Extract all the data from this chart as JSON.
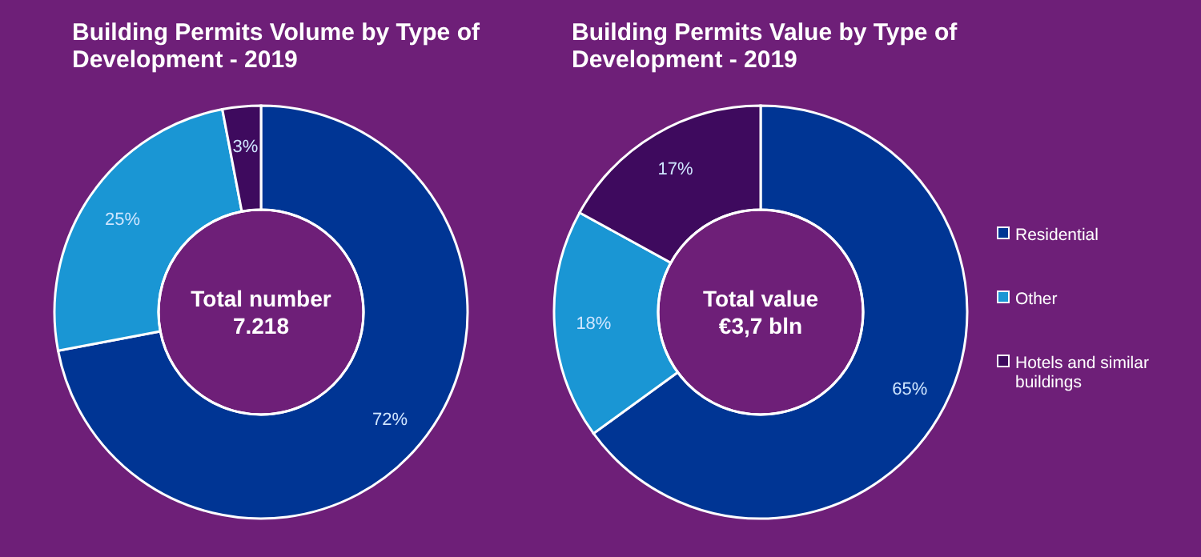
{
  "chart_data": [
    {
      "type": "donut",
      "title": "Building Permits Volume by Type of Development - 2019",
      "categories": [
        null,
        null,
        null
      ],
      "values": [
        72,
        25,
        3
      ],
      "colors": [
        "#003594",
        "#1a96d4",
        "#3e0a5e"
      ],
      "value_labels": [
        "72%",
        "25%",
        "3%"
      ],
      "annotations": [
        "Total number",
        "7.218"
      ],
      "legend": false
    },
    {
      "type": "donut",
      "title": "Building Permits Value by Type of Development - 2019",
      "categories": [
        "Residential",
        "Other",
        "Hotels and similar buildings"
      ],
      "values": [
        65,
        18,
        17
      ],
      "colors": [
        "#003594",
        "#1a96d4",
        "#3e0a5e"
      ],
      "value_labels": [
        "65%",
        "18%",
        "17%"
      ],
      "annotations": [
        "Total value",
        "€3,7 bln"
      ],
      "legend": "right"
    }
  ]
}
